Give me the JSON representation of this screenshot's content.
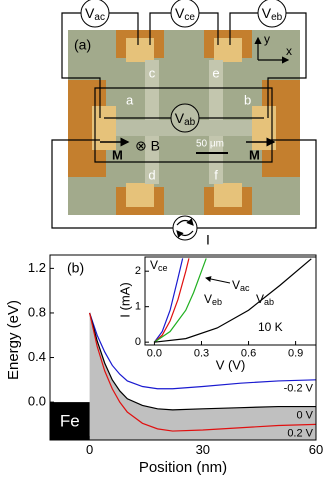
{
  "panel_a": {
    "label": "(a)",
    "voltmeters": [
      {
        "symbol": "V",
        "subscript": "ac"
      },
      {
        "symbol": "V",
        "subscript": "ce"
      },
      {
        "symbol": "V",
        "subscript": "eb"
      },
      {
        "symbol": "V",
        "subscript": "ab"
      }
    ],
    "terminals": [
      "a",
      "b",
      "c",
      "d",
      "e",
      "f"
    ],
    "field": "⊗ B",
    "scale_bar": "50 μm",
    "magnetization": [
      "M",
      "M"
    ],
    "axes": [
      "y",
      "x"
    ],
    "current": "I"
  },
  "chart_data": [
    {
      "type": "line",
      "panel_label": "(b)",
      "x_label": "Position (nm)",
      "y_label": "Energy (eV)",
      "fe_label": "Fe",
      "x": [
        0,
        2,
        4,
        6,
        8,
        10,
        14,
        18,
        22,
        30,
        40,
        50,
        60
      ],
      "series": [
        {
          "name": "-0.2 V",
          "color": "#1a1ad0",
          "values": [
            0.8,
            0.6,
            0.45,
            0.33,
            0.25,
            0.19,
            0.14,
            0.12,
            0.12,
            0.14,
            0.17,
            0.19,
            0.2
          ]
        },
        {
          "name": "0 V",
          "color": "#000000",
          "values": [
            0.8,
            0.55,
            0.35,
            0.2,
            0.1,
            0.03,
            -0.03,
            -0.06,
            -0.07,
            -0.06,
            -0.05,
            -0.04,
            -0.04
          ]
        },
        {
          "name": "0.2 V",
          "color": "#e01010",
          "values": [
            0.8,
            0.5,
            0.28,
            0.12,
            0.0,
            -0.09,
            -0.19,
            -0.24,
            -0.26,
            -0.25,
            -0.23,
            -0.21,
            -0.2
          ]
        }
      ],
      "filled_series": 1,
      "fill_color": "#c0c0c0",
      "xlim": [
        -10.5,
        60
      ],
      "xticks": [
        0,
        30,
        60
      ],
      "ylim": [
        -0.34,
        1.32
      ],
      "yticks": [
        {
          "value": 0,
          "label": "0.0"
        },
        0.4,
        0.8,
        1.2
      ]
    },
    {
      "type": "line",
      "x_label": "V (V)",
      "y_label": "I (mA)",
      "annotation": "10 K",
      "series": [
        {
          "name": "V",
          "subscript": "ce",
          "color": "#1a1ad0",
          "x": [
            0,
            0.05,
            0.1,
            0.15,
            0.18
          ],
          "values": [
            0,
            0.3,
            0.9,
            1.8,
            2.36
          ]
        },
        {
          "name": "V",
          "subscript": "ac",
          "color": "#e01010",
          "x": [
            0,
            0.05,
            0.1,
            0.15,
            0.2,
            0.22
          ],
          "values": [
            0,
            0.2,
            0.6,
            1.2,
            2.0,
            2.36
          ]
        },
        {
          "name": "V",
          "subscript": "eb",
          "color": "#20b020",
          "x": [
            0,
            0.1,
            0.2,
            0.25,
            0.3,
            0.33
          ],
          "values": [
            0,
            0.3,
            0.9,
            1.4,
            2.0,
            2.36
          ]
        },
        {
          "name": "V",
          "subscript": "ab",
          "color": "#000000",
          "x": [
            0,
            0.2,
            0.4,
            0.6,
            0.8,
            1.0
          ],
          "values": [
            0,
            0.1,
            0.4,
            0.9,
            1.6,
            2.35
          ]
        }
      ],
      "xlim": [
        -0.06,
        1.03
      ],
      "xticks": [
        {
          "value": 0,
          "label": "0.0"
        },
        0.3,
        0.6,
        0.9
      ],
      "ylim": [
        -0.08,
        2.4
      ],
      "yticks": [
        0,
        1,
        2
      ]
    }
  ]
}
